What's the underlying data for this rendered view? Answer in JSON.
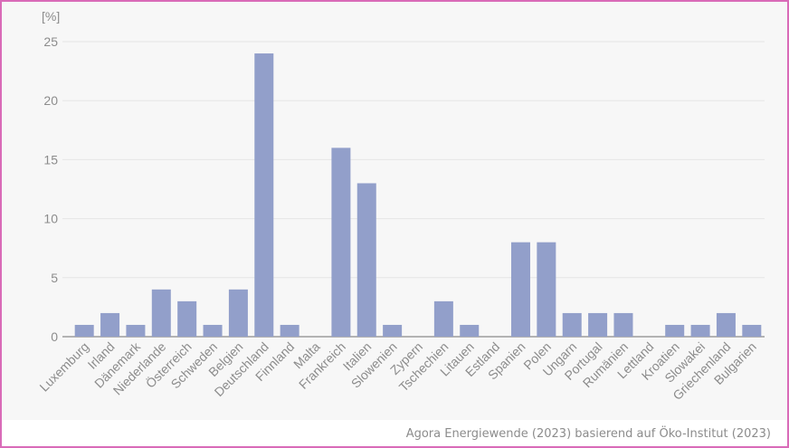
{
  "chart_data": {
    "type": "bar",
    "ylabel": "[%]",
    "ylim": [
      0,
      25
    ],
    "yticks": [
      0,
      5,
      10,
      15,
      20,
      25
    ],
    "grid": true,
    "bar_color": "#929fca",
    "categories": [
      "Luxemburg",
      "Irland",
      "Dänemark",
      "Niederlande",
      "Österreich",
      "Schweden",
      "Belgien",
      "Deutschland",
      "Finnland",
      "Malta",
      "Frankreich",
      "Italien",
      "Slowenien",
      "Zypern",
      "Tschechien",
      "Litauen",
      "Estland",
      "Spanien",
      "Polen",
      "Ungarn",
      "Portugal",
      "Rumänien",
      "Lettland",
      "Kroatien",
      "Slowakei",
      "Griechenland",
      "Bulgarien"
    ],
    "values": [
      1,
      2,
      1,
      4,
      3,
      1,
      4,
      24,
      1,
      0,
      16,
      13,
      1,
      0,
      3,
      1,
      0,
      8,
      8,
      2,
      2,
      2,
      0,
      1,
      1,
      2,
      1
    ]
  },
  "source": "Agora Energiewende (2023) basierend auf Öko-Institut (2023)"
}
